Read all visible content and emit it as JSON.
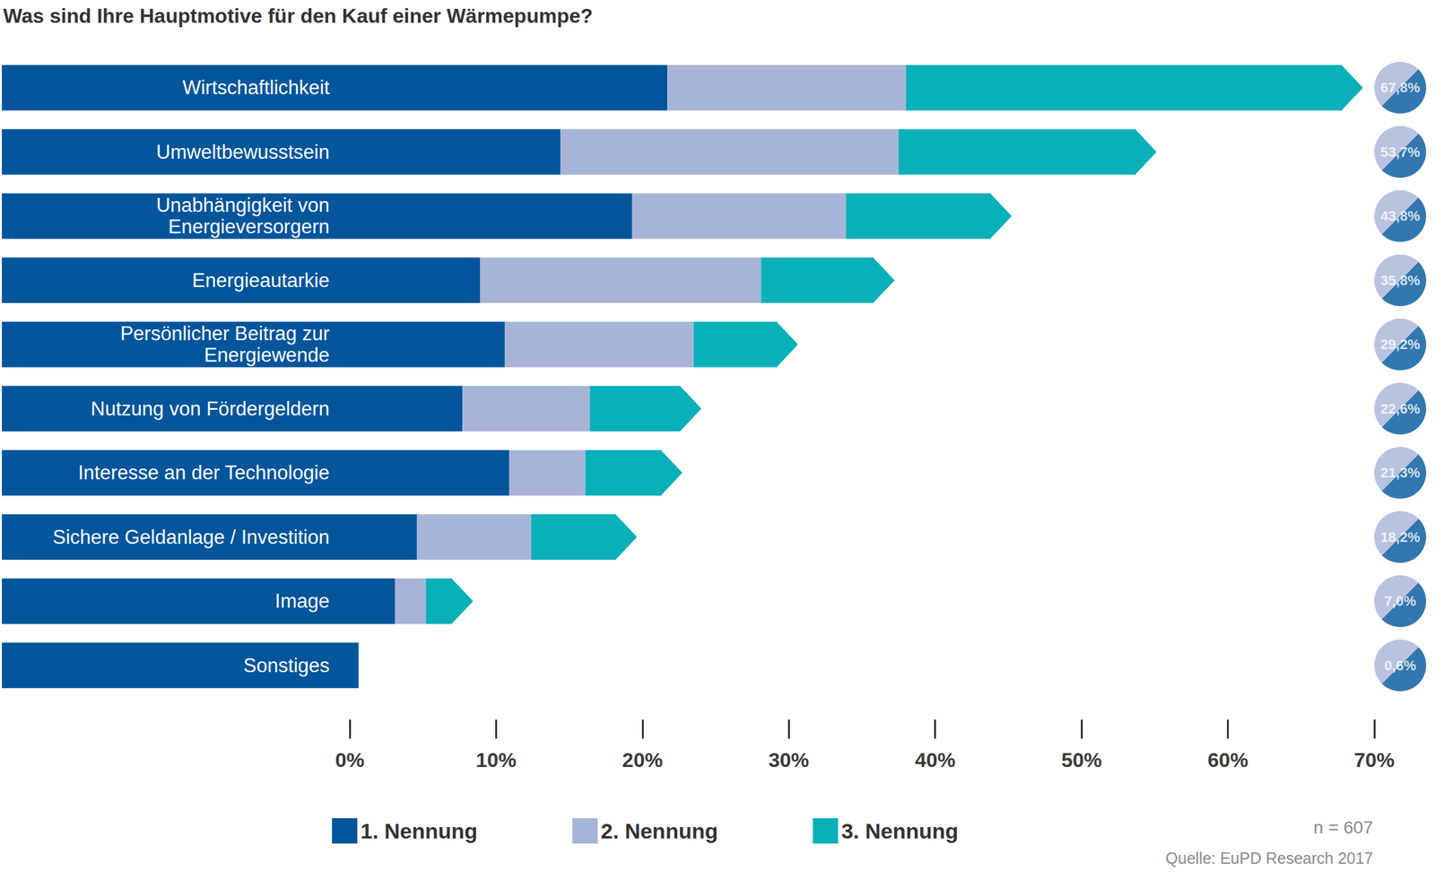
{
  "chart_data": {
    "type": "bar",
    "title": "Was sind Ihre Hauptmotive für den Kauf einer Wärmepumpe?",
    "orientation": "horizontal",
    "stacked": true,
    "grid": false,
    "legend": "bottom",
    "data_labels": false,
    "categories": [
      "Wirtschaftlichkeit",
      "Umweltbewusstsein",
      "Unabhängigkeit von\nEnergieversorgern",
      "Energieautarkie",
      "Persönlicher Beitrag zur\nEnergiewende",
      "Nutzung von Fördergeldern",
      "Interesse an der Technologie",
      "Sichere Geldanlage / Investition",
      "Image",
      "Sonstiges"
    ],
    "series": [
      {
        "name": "1. Nennung",
        "color": "#00559b",
        "values": [
          21.7,
          14.4,
          19.3,
          8.9,
          10.6,
          7.7,
          10.9,
          4.6,
          3.1,
          0.6
        ]
      },
      {
        "name": "2. Nennung",
        "color": "#a7b4d8",
        "values": [
          16.3,
          23.1,
          14.6,
          19.2,
          12.9,
          8.7,
          5.2,
          7.8,
          2.1,
          0
        ]
      },
      {
        "name": "3. Nennung",
        "color": "#08b0b8",
        "values": [
          29.8,
          16.2,
          9.9,
          7.7,
          5.7,
          6.2,
          5.2,
          5.8,
          1.8,
          0
        ]
      }
    ],
    "totals": [
      67.8,
      53.7,
      43.8,
      35.8,
      29.2,
      22.6,
      21.3,
      18.2,
      7.0,
      0.6
    ],
    "total_labels": [
      "67,8%",
      "53,7%",
      "43,8%",
      "35,8%",
      "29,2%",
      "22,6%",
      "21,3%",
      "18,2%",
      "7,0%",
      "0,6%"
    ],
    "xlim": [
      0,
      70
    ],
    "xticks": [
      {
        "value": 0,
        "label": "0%"
      },
      {
        "value": 10,
        "label": "10%"
      },
      {
        "value": 20,
        "label": "20%"
      },
      {
        "value": 30,
        "label": "30%"
      },
      {
        "value": 40,
        "label": "40%"
      },
      {
        "value": 50,
        "label": "50%"
      },
      {
        "value": 60,
        "label": "60%"
      },
      {
        "value": 70,
        "label": "70%"
      }
    ],
    "annotations": [
      "n = 607",
      "Quelle: EuPD Research 2017"
    ]
  }
}
